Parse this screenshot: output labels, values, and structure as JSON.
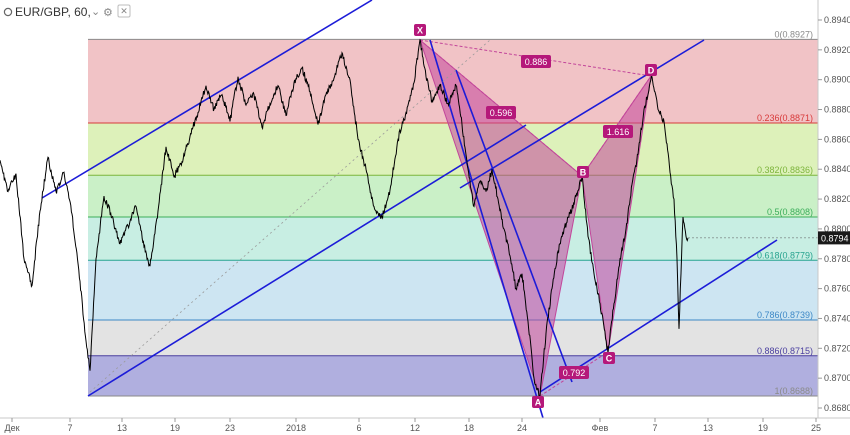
{
  "header": {
    "symbol": "EUR/GBP, 60,",
    "collapse_glyph": "⌄",
    "settings_glyph": "⚙",
    "close_glyph": "✕"
  },
  "chart_data": {
    "type": "line",
    "series": [
      {
        "values": [
          [
            0,
            0.8846
          ],
          [
            8,
            0.8825
          ],
          [
            16,
            0.8837
          ],
          [
            24,
            0.878
          ],
          [
            32,
            0.8762
          ],
          [
            40,
            0.8812
          ],
          [
            48,
            0.8848
          ],
          [
            56,
            0.8825
          ],
          [
            64,
            0.8838
          ],
          [
            72,
            0.881
          ],
          [
            80,
            0.8765
          ],
          [
            86,
            0.8725
          ],
          [
            90,
            0.8705
          ],
          [
            96,
            0.878
          ],
          [
            104,
            0.8822
          ],
          [
            112,
            0.8808
          ],
          [
            120,
            0.879
          ],
          [
            128,
            0.8802
          ],
          [
            136,
            0.8815
          ],
          [
            144,
            0.8788
          ],
          [
            150,
            0.8775
          ],
          [
            158,
            0.8812
          ],
          [
            166,
            0.8855
          ],
          [
            174,
            0.8835
          ],
          [
            182,
            0.8845
          ],
          [
            190,
            0.8862
          ],
          [
            198,
            0.8878
          ],
          [
            206,
            0.8896
          ],
          [
            214,
            0.888
          ],
          [
            222,
            0.889
          ],
          [
            230,
            0.8872
          ],
          [
            238,
            0.8902
          ],
          [
            246,
            0.8883
          ],
          [
            254,
            0.889
          ],
          [
            262,
            0.8868
          ],
          [
            270,
            0.8884
          ],
          [
            278,
            0.8896
          ],
          [
            286,
            0.8876
          ],
          [
            294,
            0.8898
          ],
          [
            302,
            0.8908
          ],
          [
            310,
            0.8892
          ],
          [
            318,
            0.887
          ],
          [
            326,
            0.889
          ],
          [
            334,
            0.8901
          ],
          [
            342,
            0.8918
          ],
          [
            350,
            0.89
          ],
          [
            358,
            0.886
          ],
          [
            366,
            0.884
          ],
          [
            374,
            0.8815
          ],
          [
            382,
            0.8808
          ],
          [
            390,
            0.8826
          ],
          [
            398,
            0.886
          ],
          [
            406,
            0.8878
          ],
          [
            414,
            0.8898
          ],
          [
            420,
            0.8927
          ],
          [
            426,
            0.8902
          ],
          [
            432,
            0.8886
          ],
          [
            440,
            0.8896
          ],
          [
            448,
            0.8884
          ],
          [
            456,
            0.8896
          ],
          [
            462,
            0.887
          ],
          [
            468,
            0.884
          ],
          [
            474,
            0.8815
          ],
          [
            480,
            0.8832
          ],
          [
            486,
            0.8825
          ],
          [
            492,
            0.884
          ],
          [
            498,
            0.882
          ],
          [
            504,
            0.88
          ],
          [
            510,
            0.8782
          ],
          [
            516,
            0.876
          ],
          [
            522,
            0.877
          ],
          [
            528,
            0.8738
          ],
          [
            534,
            0.87
          ],
          [
            540,
            0.8688
          ],
          [
            546,
            0.873
          ],
          [
            552,
            0.876
          ],
          [
            558,
            0.8785
          ],
          [
            564,
            0.88
          ],
          [
            570,
            0.881
          ],
          [
            576,
            0.8822
          ],
          [
            582,
            0.8835
          ],
          [
            588,
            0.8795
          ],
          [
            594,
            0.877
          ],
          [
            600,
            0.875
          ],
          [
            608,
            0.8717
          ],
          [
            614,
            0.875
          ],
          [
            620,
            0.878
          ],
          [
            626,
            0.88
          ],
          [
            632,
            0.883
          ],
          [
            638,
            0.885
          ],
          [
            644,
            0.888
          ],
          [
            652,
            0.8902
          ],
          [
            658,
            0.888
          ],
          [
            664,
            0.8872
          ],
          [
            670,
            0.8838
          ],
          [
            674,
            0.882
          ],
          [
            677,
            0.878
          ],
          [
            679,
            0.8733
          ],
          [
            681,
            0.877
          ],
          [
            683,
            0.8808
          ],
          [
            686,
            0.8795
          ],
          [
            688,
            0.8794
          ]
        ]
      }
    ],
    "x_ticks": [
      "Дек",
      "7",
      "13",
      "19",
      "23",
      "2018",
      "6",
      "12",
      "18",
      "24",
      "Фев",
      "7",
      "13",
      "19",
      "25"
    ],
    "y_ticks": [
      "0.8940",
      "0.8920",
      "0.8900",
      "0.8880",
      "0.8860",
      "0.8840",
      "0.8820",
      "0.8800",
      "0.8780",
      "0.8760",
      "0.8740",
      "0.8720",
      "0.8700",
      "0.8680"
    ],
    "ylim": [
      0.8672,
      0.8945
    ],
    "last_price": "0.8794",
    "fib_levels": [
      {
        "label": "0(0.8927)",
        "value": 0.8927,
        "color": "#8a8a8a",
        "fill": "#f0bcc0"
      },
      {
        "label": "0.236(0.8871)",
        "value": 0.8871,
        "color": "#d83a3a",
        "fill": "#d9f0b2"
      },
      {
        "label": "0.382(0.8836)",
        "value": 0.8836,
        "color": "#7db53c",
        "fill": "#c4eec1"
      },
      {
        "label": "0.5(0.8808)",
        "value": 0.8808,
        "color": "#3cae5a",
        "fill": "#c2ece0"
      },
      {
        "label": "0.618(0.8779)",
        "value": 0.8779,
        "color": "#27a38f",
        "fill": "#c8e2f1"
      },
      {
        "label": "0.786(0.8739)",
        "value": 0.8739,
        "color": "#3d88c6",
        "fill": "#e0e0e0"
      },
      {
        "label": "0.886(0.8715)",
        "value": 0.8715,
        "color": "#4a3fa0",
        "fill": "#a7a6dc"
      },
      {
        "label": "1(0.8688)",
        "value": 0.8688,
        "color": "#8a8a8a",
        "fill": null
      }
    ],
    "pattern_points": [
      {
        "label": "X",
        "value": 0.8927
      },
      {
        "label": "A",
        "value": 0.8688
      },
      {
        "label": "B",
        "value": 0.8835
      },
      {
        "label": "C",
        "value": 0.8717
      },
      {
        "label": "D",
        "value": 0.8902
      }
    ],
    "pattern_ratios": [
      "0.886",
      "0.596",
      "1.616",
      "0.792"
    ],
    "colors": {
      "trendline": "#1c1cd8",
      "pattern_fill": "#c2469a",
      "pattern_label_bg": "#b5187a",
      "price_line": "#000000",
      "last_price_bg": "#1a1a1a",
      "axis_text": "#555555"
    }
  }
}
